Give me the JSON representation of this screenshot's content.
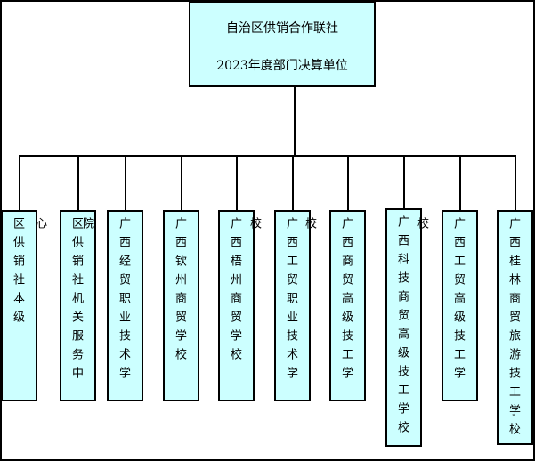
{
  "root": {
    "line1": "自治区供销合作联社",
    "line2": "2023年度部门决算单位"
  },
  "units": [
    {
      "label": "区供销社本级"
    },
    {
      "label": "区供销社机关服务中心"
    },
    {
      "label": "广西经贸职业技术学院"
    },
    {
      "label": "广西钦州商贸学校"
    },
    {
      "label": "广西梧州商贸学校"
    },
    {
      "label": "广西工贸职业技术学校"
    },
    {
      "label": "广西商贸高级技工学校"
    },
    {
      "label": "广西科技商贸高级技工学校"
    },
    {
      "label": "广西工贸高级技工学校"
    },
    {
      "label": "广西桂林商贸旅游技工学校"
    }
  ],
  "colors": {
    "box_fill": "#ccffff",
    "line": "#000000"
  }
}
